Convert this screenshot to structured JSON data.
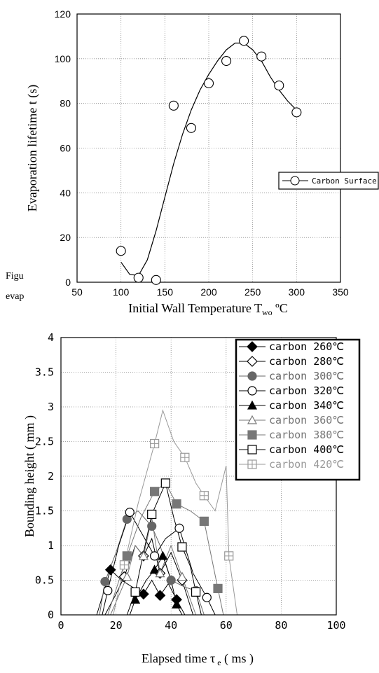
{
  "chart_data": [
    {
      "type": "scatter",
      "xlim": [
        50,
        350
      ],
      "ylim": [
        0,
        120
      ],
      "x_ticks": [
        "50",
        "100",
        "150",
        "200",
        "250",
        "300",
        "350"
      ],
      "y_ticks": [
        "0",
        "20",
        "40",
        "60",
        "80",
        "100",
        "120"
      ],
      "xlabel": "Initial Wall Temperature T",
      "xlabel_sub": "wo",
      "xlabel_unit": " ºC",
      "ylabel": "Evaporation    lifetime t (s)",
      "grid": true,
      "legend_position": "right",
      "series": [
        {
          "name": "Carbon Surface",
          "marker": "circle-open",
          "points": [
            [
              100,
              14
            ],
            [
              120,
              2
            ],
            [
              140,
              1
            ],
            [
              160,
              79
            ],
            [
              180,
              69
            ],
            [
              200,
              89
            ],
            [
              220,
              99
            ],
            [
              240,
              108
            ],
            [
              260,
              101
            ],
            [
              280,
              88
            ],
            [
              300,
              76
            ]
          ],
          "curve": [
            [
              100,
              9
            ],
            [
              110,
              3.5
            ],
            [
              120,
              3
            ],
            [
              130,
              10
            ],
            [
              140,
              23
            ],
            [
              150,
              38
            ],
            [
              160,
              53
            ],
            [
              170,
              66
            ],
            [
              180,
              77
            ],
            [
              190,
              86
            ],
            [
              200,
              93
            ],
            [
              210,
              99
            ],
            [
              220,
              104
            ],
            [
              230,
              107
            ],
            [
              240,
              107
            ],
            [
              250,
              104
            ],
            [
              260,
              99
            ],
            [
              270,
              92
            ],
            [
              280,
              86
            ],
            [
              290,
              81
            ],
            [
              300,
              77
            ]
          ]
        }
      ]
    },
    {
      "type": "line",
      "xlim": [
        0,
        100
      ],
      "ylim": [
        0,
        4
      ],
      "x_ticks": [
        "0",
        "20",
        "40",
        "60",
        "80",
        "100"
      ],
      "y_ticks": [
        "0",
        "0.5",
        "1",
        "1.5",
        "2",
        "2.5",
        "3",
        "3.5",
        "4"
      ],
      "xlabel": "Elapsed time   τ",
      "xlabel_sub": "e",
      "xlabel_unit": " ( ms )",
      "ylabel": "Bounding height    ( mm )",
      "grid": true,
      "legend_position": "top-right",
      "series": [
        {
          "name": "carbon  260℃",
          "color": "#000000",
          "marker": "diamond-filled",
          "points": [
            [
              18,
              0.65
            ],
            [
              30,
              0.3
            ],
            [
              36,
              0.28
            ],
            [
              42,
              0.22
            ]
          ],
          "trace": [
            [
              13,
              0
            ],
            [
              18,
              0.65
            ],
            [
              22,
              0.5
            ],
            [
              26,
              0.4
            ],
            [
              30,
              0.3
            ],
            [
              33,
              0.5
            ],
            [
              36,
              0.28
            ],
            [
              39,
              0.45
            ],
            [
              42,
              0.22
            ],
            [
              45,
              0
            ]
          ]
        },
        {
          "name": "carbon  280℃",
          "color": "#000000",
          "marker": "diamond-open",
          "points": [
            [
              23,
              0.55
            ],
            [
              30,
              0.85
            ],
            [
              36,
              0.6
            ],
            [
              44,
              0.5
            ]
          ],
          "trace": [
            [
              16,
              0
            ],
            [
              20,
              0.3
            ],
            [
              23,
              0.55
            ],
            [
              27,
              1.0
            ],
            [
              30,
              0.85
            ],
            [
              33,
              1.1
            ],
            [
              36,
              0.6
            ],
            [
              40,
              0.9
            ],
            [
              44,
              0.5
            ],
            [
              48,
              0
            ]
          ]
        },
        {
          "name": "carbon  300℃",
          "color": "#666666",
          "marker": "circle-filled",
          "points": [
            [
              16,
              0.48
            ],
            [
              24,
              1.38
            ],
            [
              33,
              1.28
            ],
            [
              40,
              0.5
            ],
            [
              49,
              0.35
            ]
          ],
          "trace": [
            [
              14,
              0
            ],
            [
              16,
              0.48
            ],
            [
              20,
              0.9
            ],
            [
              24,
              1.38
            ],
            [
              28,
              1.5
            ],
            [
              33,
              1.28
            ],
            [
              36,
              1.0
            ],
            [
              40,
              0.5
            ],
            [
              45,
              0.4
            ],
            [
              49,
              0.35
            ],
            [
              52,
              0
            ]
          ]
        },
        {
          "name": "carbon  320℃",
          "color": "#000000",
          "marker": "circle-open",
          "points": [
            [
              17,
              0.35
            ],
            [
              25,
              1.48
            ],
            [
              34,
              0.85
            ],
            [
              43,
              1.25
            ],
            [
              53,
              0.25
            ]
          ],
          "trace": [
            [
              15,
              0
            ],
            [
              17,
              0.35
            ],
            [
              21,
              1.0
            ],
            [
              25,
              1.48
            ],
            [
              29,
              1.2
            ],
            [
              34,
              0.85
            ],
            [
              38,
              1.1
            ],
            [
              43,
              1.25
            ],
            [
              48,
              0.6
            ],
            [
              53,
              0.25
            ],
            [
              56,
              0
            ]
          ]
        },
        {
          "name": "carbon  340℃",
          "color": "#000000",
          "marker": "triangle-filled",
          "points": [
            [
              27,
              0.22
            ],
            [
              34,
              0.65
            ],
            [
              37,
              0.85
            ],
            [
              42,
              0.15
            ]
          ],
          "trace": [
            [
              25,
              0
            ],
            [
              27,
              0.22
            ],
            [
              31,
              0.5
            ],
            [
              34,
              0.65
            ],
            [
              37,
              0.85
            ],
            [
              40,
              0.5
            ],
            [
              42,
              0.15
            ],
            [
              44,
              0
            ]
          ]
        },
        {
          "name": "carbon  360℃",
          "color": "#777777",
          "marker": "triangle-open",
          "points": [
            [
              24,
              0.55
            ],
            [
              30,
              0.85
            ],
            [
              36,
              0.6
            ],
            [
              44,
              0.55
            ]
          ],
          "trace": [
            [
              18,
              0
            ],
            [
              24,
              0.55
            ],
            [
              27,
              1.0
            ],
            [
              30,
              0.85
            ],
            [
              33,
              1.4
            ],
            [
              36,
              0.6
            ],
            [
              40,
              1.0
            ],
            [
              44,
              0.55
            ],
            [
              49,
              0
            ]
          ]
        },
        {
          "name": "carbon  380℃",
          "color": "#777777",
          "marker": "square-filled",
          "points": [
            [
              24,
              0.85
            ],
            [
              34,
              1.78
            ],
            [
              42,
              1.6
            ],
            [
              52,
              1.35
            ],
            [
              57,
              0.38
            ]
          ],
          "trace": [
            [
              17,
              0
            ],
            [
              24,
              0.85
            ],
            [
              29,
              1.4
            ],
            [
              34,
              1.78
            ],
            [
              38,
              1.9
            ],
            [
              42,
              1.6
            ],
            [
              47,
              1.5
            ],
            [
              52,
              1.35
            ],
            [
              57,
              0.38
            ],
            [
              59,
              0
            ]
          ]
        },
        {
          "name": "carbon  400℃",
          "color": "#000000",
          "marker": "square-open",
          "points": [
            [
              27,
              0.33
            ],
            [
              33,
              1.45
            ],
            [
              38,
              1.9
            ],
            [
              44,
              0.98
            ],
            [
              49,
              0.33
            ]
          ],
          "trace": [
            [
              24,
              0
            ],
            [
              27,
              0.33
            ],
            [
              30,
              0.9
            ],
            [
              33,
              1.45
            ],
            [
              38,
              1.9
            ],
            [
              41,
              1.4
            ],
            [
              44,
              0.98
            ],
            [
              47,
              0.7
            ],
            [
              49,
              0.33
            ],
            [
              51,
              0
            ]
          ]
        },
        {
          "name": "carbon  420℃",
          "color": "#999999",
          "marker": "square-plus",
          "points": [
            [
              23,
              0.72
            ],
            [
              34,
              2.47
            ],
            [
              45,
              2.27
            ],
            [
              52,
              1.72
            ],
            [
              61,
              0.85
            ]
          ],
          "trace": [
            [
              19,
              0
            ],
            [
              23,
              0.72
            ],
            [
              28,
              1.6
            ],
            [
              34,
              2.47
            ],
            [
              37,
              2.95
            ],
            [
              41,
              2.5
            ],
            [
              45,
              2.27
            ],
            [
              49,
              1.9
            ],
            [
              52,
              1.72
            ],
            [
              56,
              1.5
            ],
            [
              60,
              2.15
            ],
            [
              61,
              0.85
            ],
            [
              64,
              0
            ]
          ]
        }
      ]
    }
  ],
  "fragments": {
    "line1": "Figu",
    "line2": "evap"
  }
}
